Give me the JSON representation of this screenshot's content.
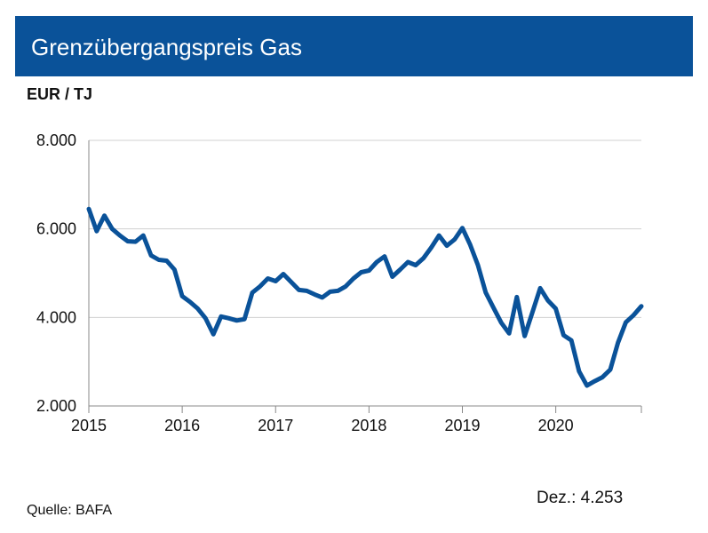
{
  "header": {
    "title": "Grenzübergangspreis Gas"
  },
  "unit_label": "EUR / TJ",
  "source": "Quelle: BAFA",
  "last_value_label": "Dez.: 4.253",
  "colors": {
    "header_bg": "#0a5299",
    "line": "#0a5299",
    "grid": "#d0d0d0"
  },
  "chart_data": {
    "type": "line",
    "title": "Grenzübergangspreis Gas",
    "ylabel": "EUR / TJ",
    "xlabel": "",
    "ylim": [
      2000,
      8000
    ],
    "y_ticks": [
      2000,
      4000,
      6000,
      8000
    ],
    "y_tick_labels": [
      "2.000",
      "4.000",
      "6.000",
      "8.000"
    ],
    "x_tick_labels": [
      "2015",
      "2016",
      "2017",
      "2018",
      "2019",
      "2020"
    ],
    "x_range": [
      "2015-01",
      "2020-12"
    ],
    "grid": "horizontal",
    "series": [
      {
        "x": [
          "2015-01",
          "2015-02",
          "2015-03",
          "2015-04",
          "2015-05",
          "2015-06",
          "2015-07",
          "2015-08",
          "2015-09",
          "2015-10",
          "2015-11",
          "2015-12",
          "2016-01",
          "2016-02",
          "2016-03",
          "2016-04",
          "2016-05",
          "2016-06",
          "2016-07",
          "2016-08",
          "2016-09",
          "2016-10",
          "2016-11",
          "2016-12",
          "2017-01",
          "2017-02",
          "2017-03",
          "2017-04",
          "2017-05",
          "2017-06",
          "2017-07",
          "2017-08",
          "2017-09",
          "2017-10",
          "2017-11",
          "2017-12",
          "2018-01",
          "2018-02",
          "2018-03",
          "2018-04",
          "2018-05",
          "2018-06",
          "2018-07",
          "2018-08",
          "2018-09",
          "2018-10",
          "2018-11",
          "2018-12",
          "2019-01",
          "2019-02",
          "2019-03",
          "2019-04",
          "2019-05",
          "2019-06",
          "2019-07",
          "2019-08",
          "2019-09",
          "2019-10",
          "2019-11",
          "2019-12",
          "2020-01",
          "2020-02",
          "2020-03",
          "2020-04",
          "2020-05",
          "2020-06",
          "2020-07",
          "2020-08",
          "2020-09",
          "2020-10",
          "2020-11",
          "2020-12"
        ],
        "values": [
          6450,
          5950,
          6300,
          6000,
          5850,
          5720,
          5710,
          5850,
          5400,
          5300,
          5280,
          5080,
          4480,
          4350,
          4200,
          3980,
          3620,
          4020,
          3980,
          3930,
          3960,
          4560,
          4700,
          4880,
          4820,
          4980,
          4800,
          4620,
          4600,
          4520,
          4450,
          4580,
          4600,
          4700,
          4880,
          5020,
          5060,
          5250,
          5380,
          4920,
          5080,
          5250,
          5180,
          5340,
          5580,
          5850,
          5620,
          5760,
          6020,
          5640,
          5180,
          4560,
          4220,
          3880,
          3640,
          4460,
          3580,
          4120,
          4660,
          4380,
          4200,
          3600,
          3480,
          2780,
          2460,
          2560,
          2650,
          2820,
          3430,
          3890,
          4050,
          4253
        ]
      }
    ]
  }
}
